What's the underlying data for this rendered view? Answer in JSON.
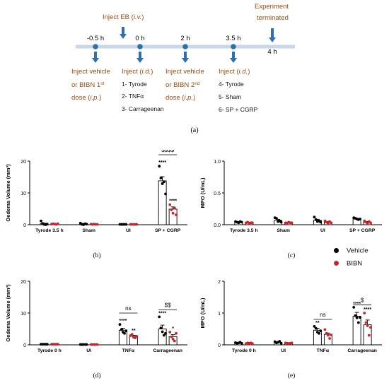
{
  "timeline": {
    "times": [
      "-0.5 h",
      "0 h",
      "2 h",
      "3.5 h",
      "4 h"
    ],
    "top_labels": [
      {
        "parts": [
          {
            "t": "Inject EB ("
          },
          {
            "t": "i.v.",
            "i": true
          },
          {
            "t": ")"
          }
        ]
      },
      {
        "parts": [
          {
            "t": "Experiment"
          }
        ]
      },
      {
        "parts": [
          {
            "t": "terminated"
          }
        ]
      }
    ],
    "lines": {
      "a1": [
        {
          "t": "Inject  vehicle"
        }
      ],
      "a2": [
        {
          "t": "or    BIBN    1"
        },
        {
          "t": "st",
          "sup": true
        }
      ],
      "a3": [
        {
          "t": "dose ("
        },
        {
          "t": "i.p.",
          "i": true
        },
        {
          "t": ")"
        }
      ],
      "b1": [
        {
          "t": "Inject ("
        },
        {
          "t": "i.d.",
          "i": true
        },
        {
          "t": ")"
        }
      ],
      "b2": [
        {
          "t": "1- Tyrode"
        }
      ],
      "b3": [
        {
          "t": "2- TNFα"
        }
      ],
      "b4": [
        {
          "t": "3- Carrageenan"
        }
      ],
      "c1": [
        {
          "t": "Inject  vehicle"
        }
      ],
      "c2": [
        {
          "t": "or   BIBN   2"
        },
        {
          "t": "nd",
          "sup": true
        }
      ],
      "c3": [
        {
          "t": "dose ("
        },
        {
          "t": "i.p.",
          "i": true
        },
        {
          "t": ")"
        }
      ],
      "d1": [
        {
          "t": "Inject ("
        },
        {
          "t": "i.d.",
          "i": true
        },
        {
          "t": ")"
        }
      ],
      "d2": [
        {
          "t": "4- Tyrode"
        }
      ],
      "d3": [
        {
          "t": "5- Sham"
        }
      ],
      "d4": [
        {
          "t": "6- SP + CGRP"
        }
      ]
    },
    "panel_label": "(a)"
  },
  "legend": {
    "entries": [
      "Vehicle",
      "BIBN"
    ]
  },
  "colors": {
    "vehicle": "#000000",
    "bibn": "#c0282d"
  },
  "chart_data": [
    {
      "id": "b",
      "type": "bar",
      "panel_label": "(b)",
      "ylabel": "Oedema Volume (mm³)",
      "ylim": [
        0,
        20
      ],
      "yticks": [
        0,
        10,
        20
      ],
      "categories": [
        "Tyrode 3.5 h",
        "Sham",
        "UI",
        "SP + CGRP"
      ],
      "series": [
        {
          "name": "Vehicle",
          "values": [
            0.3,
            0.2,
            0.1,
            13.8
          ],
          "sem": [
            0.2,
            0.2,
            0.1,
            1.3
          ],
          "points": [
            [
              1.2,
              0.4,
              0.1,
              0.0,
              0.2
            ],
            [
              0.5,
              0.1,
              0.0,
              0.3,
              0.2
            ],
            [
              0.1,
              0.1,
              0.1,
              0.1,
              0.1
            ],
            [
              18.4,
              14.7,
              12.9,
              13.5,
              9.7
            ]
          ],
          "sig": [
            "",
            "",
            "",
            "****"
          ]
        },
        {
          "name": "BIBN",
          "values": [
            0.2,
            0.1,
            0.1,
            4.9
          ],
          "sem": [
            0.1,
            0.1,
            0.1,
            0.7
          ],
          "points": [
            [
              0.2,
              0.3,
              0.2,
              0.1,
              0.3
            ],
            [
              0.2,
              0.1,
              0.2,
              0.1,
              0.1
            ],
            [
              0.1,
              0.1,
              0.1,
              0.1,
              0.1
            ],
            [
              6.3,
              4.7,
              3.6,
              5.2,
              3.1
            ]
          ],
          "sig": [
            "",
            "",
            "",
            "****"
          ]
        }
      ],
      "comparisons": [
        {
          "category": 3,
          "label": "$$$$",
          "value": 22
        }
      ]
    },
    {
      "id": "c",
      "type": "bar",
      "panel_label": "(c)",
      "ylabel": "MPO (U/mL)",
      "ylim": [
        0,
        1.0
      ],
      "yticks": [
        0.0,
        0.5,
        1.0
      ],
      "categories": [
        "Tyrode 3.5 h",
        "Sham",
        "UI",
        "SP + CGRP"
      ],
      "series": [
        {
          "name": "Vehicle",
          "values": [
            0.04,
            0.07,
            0.07,
            0.09
          ],
          "sem": [
            0.01,
            0.015,
            0.015,
            0.01
          ],
          "points": [
            [
              0.05,
              0.04,
              0.03,
              0.05,
              0.04
            ],
            [
              0.11,
              0.1,
              0.05,
              0.06,
              0.04
            ],
            [
              0.12,
              0.08,
              0.05,
              0.06,
              0.04
            ],
            [
              0.11,
              0.1,
              0.09,
              0.08,
              0.09
            ]
          ],
          "sig": [
            "",
            "",
            "",
            ""
          ]
        },
        {
          "name": "BIBN",
          "values": [
            0.03,
            0.03,
            0.04,
            0.04
          ],
          "sem": [
            0.008,
            0.008,
            0.01,
            0.01
          ],
          "points": [
            [
              0.03,
              0.04,
              0.02,
              0.03,
              0.03
            ],
            [
              0.03,
              0.02,
              0.04,
              0.03,
              0.03
            ],
            [
              0.06,
              0.04,
              0.02,
              0.05,
              0.03
            ],
            [
              0.06,
              0.04,
              0.02,
              0.05,
              0.03
            ]
          ],
          "sig": [
            "",
            "",
            "",
            ""
          ]
        }
      ],
      "comparisons": []
    },
    {
      "id": "d",
      "type": "bar",
      "panel_label": "(d)",
      "ylabel": "Oedema Volume (mm³)",
      "ylim": [
        0,
        20
      ],
      "yticks": [
        0,
        10,
        20
      ],
      "categories": [
        "Tyrode 0 h",
        "UI",
        "TNFα",
        "Carrageenan"
      ],
      "series": [
        {
          "name": "Vehicle",
          "values": [
            0.2,
            0.1,
            4.6,
            5.0
          ],
          "sem": [
            0.05,
            0.05,
            0.6,
            1.2
          ],
          "points": [
            [
              0.2,
              0.2,
              0.2,
              0.2,
              0.2
            ],
            [
              0.1,
              0.1,
              0.1,
              0.1,
              0.1
            ],
            [
              6.4,
              4.8,
              4.0,
              3.6,
              4.4
            ],
            [
              8.8,
              5.3,
              4.1,
              3.0,
              3.6
            ]
          ],
          "sig": [
            "",
            "",
            "****",
            "****"
          ]
        },
        {
          "name": "BIBN",
          "values": [
            0.2,
            0.1,
            2.7,
            2.6
          ],
          "sem": [
            0.05,
            0.05,
            0.3,
            0.6
          ],
          "points": [
            [
              0.2,
              0.2,
              0.2,
              0.2,
              0.2
            ],
            [
              0.1,
              0.1,
              0.1,
              0.1,
              0.1
            ],
            [
              2.9,
              3.3,
              2.4,
              2.2,
              2.7
            ],
            [
              4.0,
              2.5,
              1.8,
              1.2,
              3.6
            ]
          ],
          "sig": [
            "",
            "",
            "**",
            "*"
          ]
        }
      ],
      "comparisons": [
        {
          "category": 2,
          "label": "ns",
          "value": 10
        },
        {
          "category": 3,
          "label": "$$",
          "value": 11
        }
      ]
    },
    {
      "id": "e",
      "type": "bar",
      "panel_label": "(e)",
      "ylabel": "MPO (U/mL)",
      "ylim": [
        0,
        2
      ],
      "yticks": [
        0,
        1,
        2
      ],
      "categories": [
        "Tyrode 0 h",
        "UI",
        "TNFα",
        "Carrageenan"
      ],
      "series": [
        {
          "name": "Vehicle",
          "values": [
            0.06,
            0.08,
            0.46,
            0.9
          ],
          "sem": [
            0.01,
            0.02,
            0.06,
            0.12
          ],
          "points": [
            [
              0.07,
              0.05,
              0.06,
              0.08,
              0.05
            ],
            [
              0.1,
              0.06,
              0.08,
              0.11,
              0.05
            ],
            [
              0.58,
              0.52,
              0.4,
              0.36,
              0.44
            ],
            [
              1.18,
              0.92,
              0.85,
              0.7,
              0.86
            ]
          ],
          "sig": [
            "",
            "",
            "**",
            "****"
          ]
        },
        {
          "name": "BIBN",
          "values": [
            0.05,
            0.05,
            0.33,
            0.63
          ],
          "sem": [
            0.01,
            0.01,
            0.04,
            0.15
          ],
          "points": [
            [
              0.04,
              0.06,
              0.05,
              0.06,
              0.04
            ],
            [
              0.06,
              0.05,
              0.04,
              0.05,
              0.06
            ],
            [
              0.48,
              0.36,
              0.3,
              0.2,
              0.31
            ],
            [
              1.0,
              0.7,
              0.6,
              0.3,
              0.55
            ]
          ],
          "sig": [
            "",
            "",
            "",
            "****"
          ]
        }
      ],
      "comparisons": [
        {
          "category": 2,
          "label": "ns",
          "value": 0.8
        },
        {
          "category": 3,
          "label": "$",
          "value": 1.26
        }
      ]
    }
  ]
}
